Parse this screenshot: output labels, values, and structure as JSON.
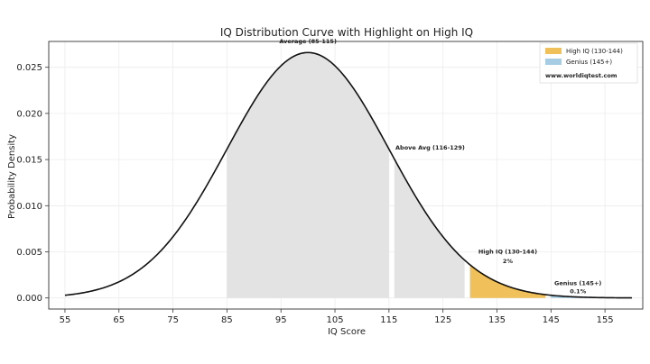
{
  "chart_data": {
    "type": "area",
    "title": "IQ Distribution Curve with Highlight on High IQ",
    "xlabel": "IQ Score",
    "ylabel": "Probability Density",
    "xlim": [
      52,
      162
    ],
    "ylim": [
      -0.0012,
      0.0278
    ],
    "xticks": [
      "55",
      "65",
      "75",
      "85",
      "95",
      "105",
      "115",
      "125",
      "135",
      "145",
      "155"
    ],
    "yticks": [
      "0.000",
      "0.005",
      "0.010",
      "0.015",
      "0.020",
      "0.025"
    ],
    "distribution": {
      "mean": 100,
      "sd": 15,
      "x_range": [
        55,
        160
      ]
    },
    "regions": [
      {
        "label": "Average (85-115)",
        "from": 85,
        "to": 115,
        "color": "#e3e3e3"
      },
      {
        "label": "Above Avg (116-129)",
        "from": 116,
        "to": 129,
        "color": "#e3e3e3"
      },
      {
        "name": "High IQ (130-144)",
        "from": 130,
        "to": 144,
        "color": "#f0c05a"
      },
      {
        "name": "Genius (145+)",
        "from": 145,
        "to": 160,
        "color": "#a6cde4"
      }
    ],
    "annotations": [
      {
        "text": "Average (85-115)",
        "x": 100,
        "y": 0.0276
      },
      {
        "text": "Above Avg (116-129)",
        "x": 116.2,
        "y": 0.0161
      },
      {
        "text": "High IQ (130-144)",
        "x": 137,
        "y": 0.0048
      },
      {
        "text": "2%",
        "x": 137,
        "y": 0.0038
      },
      {
        "text": "Genius (145+)",
        "x": 150,
        "y": 0.0014
      },
      {
        "text": "0.1%",
        "x": 150,
        "y": 0.0005
      }
    ],
    "legend": {
      "position": "top-right",
      "entries": [
        {
          "label": "High IQ (130-144)",
          "color": "#f0c05a"
        },
        {
          "label": "Genius (145+)",
          "color": "#a6cde4"
        }
      ],
      "note": "www.worldiqtest.com"
    },
    "grid": true,
    "line_color": "#111111"
  }
}
